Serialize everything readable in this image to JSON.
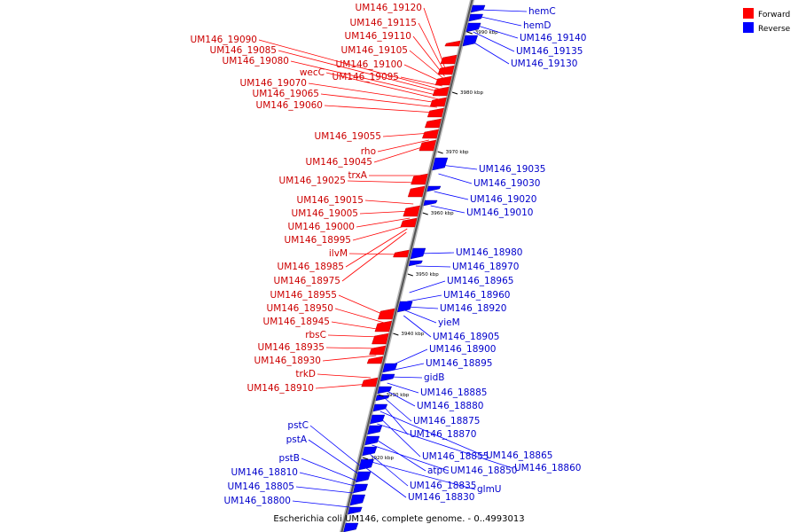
{
  "title": "Escherichia coli UM146, complete genome. - 0..4993013",
  "legend": [
    {
      "label": "Forward",
      "color": "#ff0000"
    },
    {
      "label": "Reverse",
      "color": "#0000ff"
    }
  ],
  "ticks": [
    "3990 kbp",
    "3980 kbp",
    "3970 kbp",
    "3960 kbp",
    "3950 kbp",
    "3940 kbp",
    "3930 kbp",
    "3920 kbp"
  ],
  "forward_genes": [
    "UM146_19120",
    "UM146_19115",
    "UM146_19110",
    "UM146_19105",
    "UM146_19100",
    "UM146_19095",
    "UM146_19090",
    "UM146_19085",
    "UM146_19080",
    "wecC",
    "UM146_19070",
    "UM146_19065",
    "UM146_19060",
    "UM146_19055",
    "rho",
    "UM146_19045",
    "trxA",
    "UM146_19025",
    "UM146_19015",
    "UM146_19005",
    "UM146_19000",
    "UM146_18995",
    "ilvM",
    "UM146_18985",
    "UM146_18975",
    "UM146_18955",
    "UM146_18950",
    "UM146_18945",
    "rbsC",
    "UM146_18935",
    "UM146_18930",
    "trkD",
    "UM146_18910"
  ],
  "reverse_genes": [
    "hemC",
    "hemD",
    "UM146_19140",
    "UM146_19135",
    "UM146_19130",
    "UM146_19035",
    "UM146_19030",
    "UM146_19020",
    "UM146_19010",
    "UM146_18980",
    "UM146_18970",
    "UM146_18965",
    "UM146_18960",
    "UM146_18920",
    "yieM",
    "UM146_18905",
    "UM146_18900",
    "UM146_18895",
    "gidB",
    "UM146_18885",
    "UM146_18880",
    "UM146_18875",
    "UM146_18870",
    "UM146_18865",
    "UM146_18855",
    "UM146_18860",
    "atpC",
    "UM146_18850",
    "UM146_18835",
    "glmU",
    "UM146_18830",
    "pstC",
    "pstA",
    "pstB",
    "UM146_18810",
    "UM146_18805",
    "UM146_18800"
  ]
}
